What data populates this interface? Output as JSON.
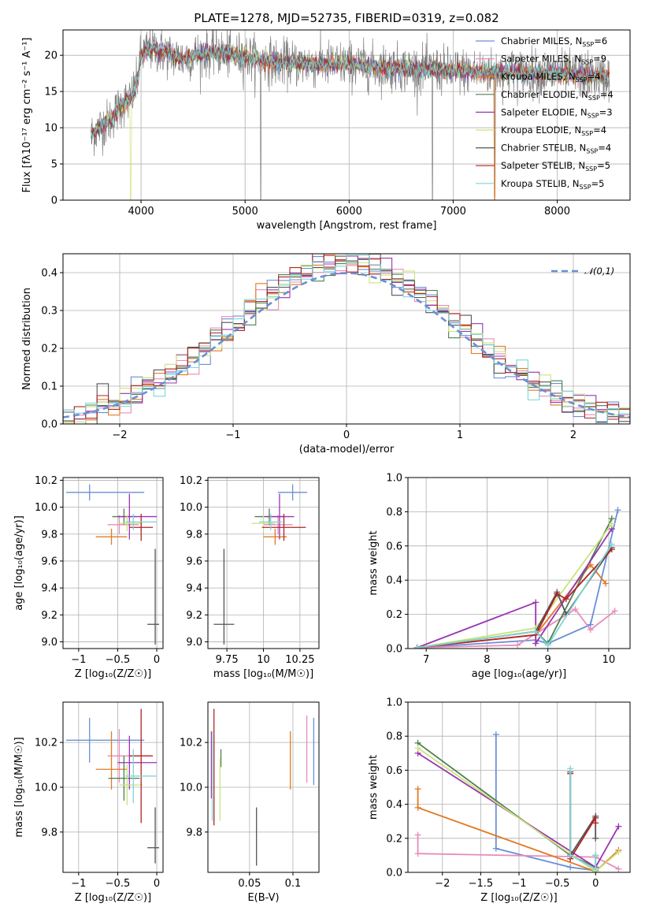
{
  "figure": {
    "title": "PLATE=1278, MJD=52735, FIBERID=0319, z=0.082"
  },
  "models": [
    {
      "label": "Chabrier MILES, N_SSP=6",
      "color": "#6a8fd6"
    },
    {
      "label": "Salpeter MILES, N_SSP=9",
      "color": "#e88cb9"
    },
    {
      "label": "Kroupa MILES, N_SSP=4",
      "color": "#e07b24"
    },
    {
      "label": "Chabrier ELODIE, N_SSP=4",
      "color": "#4f7f4f"
    },
    {
      "label": "Salpeter ELODIE, N_SSP=3",
      "color": "#9a35b1"
    },
    {
      "label": "Kroupa ELODIE, N_SSP=4",
      "color": "#c9e37c"
    },
    {
      "label": "Chabrier STELIB, N_SSP=4",
      "color": "#555555"
    },
    {
      "label": "Salpeter STELIB, N_SSP=5",
      "color": "#b22424"
    },
    {
      "label": "Kroupa STELIB, N_SSP=5",
      "color": "#7fd6d6"
    }
  ],
  "chart_data": [
    {
      "id": "spectrum",
      "type": "line",
      "xlabel": "wavelength [Angstrom, rest frame]",
      "ylabel": "Flux [fλ10⁻¹⁷ erg cm⁻² s⁻¹ A⁻¹]",
      "xlim": [
        3250,
        8700
      ],
      "ylim": [
        0,
        23.5
      ],
      "xticks": [
        4000,
        5000,
        6000,
        7000,
        8000
      ],
      "yticks": [
        0,
        5,
        10,
        15,
        20
      ],
      "grid": true,
      "legend_position": "right",
      "continuum": {
        "x": [
          3520,
          3600,
          3700,
          3800,
          3900,
          3960,
          4000,
          4100,
          4200,
          4300,
          4400,
          4500,
          4700,
          4900,
          5100,
          5300,
          5600,
          5900,
          6200,
          6500,
          6800,
          7100,
          7400,
          7700,
          8000,
          8300,
          8500
        ],
        "y": [
          9,
          10,
          11,
          13,
          14,
          16,
          20,
          21,
          20.5,
          20,
          19.5,
          20,
          20.5,
          20,
          19.5,
          19,
          18.8,
          18.8,
          18.5,
          18.2,
          18,
          17.8,
          17.7,
          17.6,
          17.4,
          17.2,
          17
        ]
      }
    },
    {
      "id": "residuals",
      "type": "histogram",
      "xlabel": "(data-model)/error",
      "ylabel": "Normed distribution",
      "xlim": [
        -2.5,
        2.5
      ],
      "ylim": [
        0,
        0.45
      ],
      "xticks": [
        -2,
        -1,
        0,
        1,
        2
      ],
      "yticks": [
        0.0,
        0.1,
        0.2,
        0.3,
        0.4
      ],
      "grid": true,
      "legend": "𝒩(0,1)",
      "legend_position": "top-right",
      "normal_color": "#6a8fd6",
      "bin_width": 0.1
    },
    {
      "id": "age_vs_Z",
      "type": "scatter",
      "xlabel": "Z [log₁₀(Z/Z☉)]",
      "ylabel": "age  [log₁₀(age/yr)]",
      "xlim": [
        -1.2,
        0.08
      ],
      "ylim": [
        8.95,
        10.22
      ],
      "xticks": [
        -1.0,
        -0.5,
        0.0
      ],
      "yticks": [
        9.0,
        9.2,
        9.4,
        9.6,
        9.8,
        10.0,
        10.2
      ],
      "grid": true,
      "points": [
        {
          "m": 0,
          "x": -0.86,
          "xerr": [
            0.3,
            0.7
          ],
          "y": 10.11,
          "yerr": [
            0.06,
            0.06
          ]
        },
        {
          "m": 1,
          "x": -0.48,
          "xerr": [
            0.15,
            0.25
          ],
          "y": 9.87,
          "yerr": [
            0.07,
            0.07
          ]
        },
        {
          "m": 2,
          "x": -0.58,
          "xerr": [
            0.2,
            0.2
          ],
          "y": 9.78,
          "yerr": [
            0.06,
            0.06
          ]
        },
        {
          "m": 3,
          "x": -0.42,
          "xerr": [
            0.15,
            0.15
          ],
          "y": 9.93,
          "yerr": [
            0.06,
            0.06
          ]
        },
        {
          "m": 4,
          "x": -0.35,
          "xerr": [
            0.15,
            0.35
          ],
          "y": 9.93,
          "yerr": [
            0.17,
            0.17
          ]
        },
        {
          "m": 5,
          "x": -0.38,
          "xerr": [
            0.1,
            0.2
          ],
          "y": 9.88,
          "yerr": [
            0.06,
            0.06
          ]
        },
        {
          "m": 6,
          "x": -0.02,
          "xerr": [
            0.1,
            0.05
          ],
          "y": 9.13,
          "yerr": [
            0.15,
            0.56
          ]
        },
        {
          "m": 7,
          "x": -0.2,
          "xerr": [
            0.15,
            0.15
          ],
          "y": 9.85,
          "yerr": [
            0.1,
            0.1
          ]
        },
        {
          "m": 8,
          "x": -0.3,
          "xerr": [
            0.1,
            0.3
          ],
          "y": 9.89,
          "yerr": [
            0.06,
            0.06
          ]
        }
      ]
    },
    {
      "id": "age_vs_mass",
      "type": "scatter",
      "xlabel": "mass [log₁₀(M/M☉)]",
      "ylabel": "",
      "xlim": [
        9.62,
        10.38
      ],
      "ylim": [
        8.95,
        10.22
      ],
      "xticks": [
        9.75,
        10.0,
        10.25
      ],
      "yticks": [
        9.0,
        9.2,
        9.4,
        9.6,
        9.8,
        10.0,
        10.2
      ],
      "grid": true,
      "points": [
        {
          "m": 0,
          "x": 10.2,
          "xerr": [
            0.1,
            0.1
          ],
          "y": 10.11,
          "yerr": [
            0.06,
            0.06
          ]
        },
        {
          "m": 1,
          "x": 10.1,
          "xerr": [
            0.1,
            0.1
          ],
          "y": 9.87,
          "yerr": [
            0.07,
            0.07
          ]
        },
        {
          "m": 2,
          "x": 10.08,
          "xerr": [
            0.08,
            0.08
          ],
          "y": 9.78,
          "yerr": [
            0.06,
            0.06
          ]
        },
        {
          "m": 3,
          "x": 10.04,
          "xerr": [
            0.1,
            0.1
          ],
          "y": 9.93,
          "yerr": [
            0.06,
            0.06
          ]
        },
        {
          "m": 4,
          "x": 10.11,
          "xerr": [
            0.1,
            0.1
          ],
          "y": 9.93,
          "yerr": [
            0.17,
            0.17
          ]
        },
        {
          "m": 5,
          "x": 10.0,
          "xerr": [
            0.08,
            0.08
          ],
          "y": 9.88,
          "yerr": [
            0.06,
            0.06
          ]
        },
        {
          "m": 6,
          "x": 9.73,
          "xerr": [
            0.07,
            0.07
          ],
          "y": 9.13,
          "yerr": [
            0.15,
            0.56
          ]
        },
        {
          "m": 7,
          "x": 10.14,
          "xerr": [
            0.15,
            0.15
          ],
          "y": 9.85,
          "yerr": [
            0.1,
            0.1
          ]
        },
        {
          "m": 8,
          "x": 10.05,
          "xerr": [
            0.08,
            0.08
          ],
          "y": 9.89,
          "yerr": [
            0.06,
            0.06
          ]
        }
      ]
    },
    {
      "id": "mass_weight_vs_age",
      "type": "line",
      "xlabel": "age  [log₁₀(age/yr)]",
      "ylabel": "mass weight",
      "xlim": [
        6.7,
        10.35
      ],
      "ylim": [
        0,
        1.0
      ],
      "xticks": [
        7,
        8,
        9,
        10
      ],
      "yticks": [
        0.0,
        0.2,
        0.4,
        0.6,
        0.8,
        1.0
      ],
      "grid": true,
      "series": [
        {
          "m": 0,
          "x": [
            6.85,
            8.8,
            9.0,
            9.7,
            10.15
          ],
          "y": [
            0.005,
            0.05,
            0.03,
            0.14,
            0.81
          ]
        },
        {
          "m": 1,
          "x": [
            6.85,
            8.5,
            9.45,
            9.7,
            10.1
          ],
          "y": [
            0.005,
            0.02,
            0.23,
            0.11,
            0.22
          ]
        },
        {
          "m": 2,
          "x": [
            6.85,
            8.8,
            9.7,
            9.95
          ],
          "y": [
            0.005,
            0.08,
            0.49,
            0.38
          ]
        },
        {
          "m": 3,
          "x": [
            6.85,
            8.8,
            9.0,
            10.05
          ],
          "y": [
            0.005,
            0.1,
            0.03,
            0.76
          ]
        },
        {
          "m": 4,
          "x": [
            6.85,
            8.8,
            8.8,
            10.05
          ],
          "y": [
            0.005,
            0.27,
            0.03,
            0.7
          ]
        },
        {
          "m": 5,
          "x": [
            6.85,
            8.8,
            10.05
          ],
          "y": [
            0.005,
            0.12,
            0.73
          ]
        },
        {
          "m": 6,
          "x": [
            6.85,
            8.8,
            9.15,
            9.3,
            10.05
          ],
          "y": [
            0.005,
            0.1,
            0.33,
            0.2,
            0.59
          ]
        },
        {
          "m": 7,
          "x": [
            6.85,
            8.8,
            9.15,
            9.3,
            10.05
          ],
          "y": [
            0.005,
            0.08,
            0.32,
            0.29,
            0.58
          ]
        },
        {
          "m": 8,
          "x": [
            6.85,
            8.8,
            9.0,
            10.05
          ],
          "y": [
            0.005,
            0.1,
            0.02,
            0.61
          ]
        }
      ]
    },
    {
      "id": "mass_vs_Z",
      "type": "scatter",
      "xlabel": "Z [log₁₀(Z/Z☉)]",
      "ylabel": "mass [log₁₀(M/M☉)]",
      "xlim": [
        -1.2,
        0.08
      ],
      "ylim": [
        9.62,
        10.38
      ],
      "xticks": [
        -1.0,
        -0.5,
        0.0
      ],
      "yticks": [
        9.8,
        10.0,
        10.2
      ],
      "grid": true,
      "points": [
        {
          "m": 0,
          "x": -0.86,
          "xerr": [
            0.3,
            0.7
          ],
          "y": 10.21,
          "yerr": [
            0.1,
            0.1
          ]
        },
        {
          "m": 1,
          "x": -0.48,
          "xerr": [
            0.15,
            0.25
          ],
          "y": 10.14,
          "yerr": [
            0.12,
            0.12
          ]
        },
        {
          "m": 2,
          "x": -0.58,
          "xerr": [
            0.2,
            0.2
          ],
          "y": 10.08,
          "yerr": [
            0.09,
            0.17
          ]
        },
        {
          "m": 3,
          "x": -0.42,
          "xerr": [
            0.2,
            0.2
          ],
          "y": 10.04,
          "yerr": [
            0.1,
            0.1
          ]
        },
        {
          "m": 4,
          "x": -0.35,
          "xerr": [
            0.15,
            0.35
          ],
          "y": 10.11,
          "yerr": [
            0.12,
            0.12
          ]
        },
        {
          "m": 5,
          "x": -0.38,
          "xerr": [
            0.1,
            0.2
          ],
          "y": 10.01,
          "yerr": [
            0.09,
            0.09
          ]
        },
        {
          "m": 6,
          "x": -0.02,
          "xerr": [
            0.1,
            0.05
          ],
          "y": 9.73,
          "yerr": [
            0.07,
            0.18
          ]
        },
        {
          "m": 7,
          "x": -0.2,
          "xerr": [
            0.15,
            0.15
          ],
          "y": 10.14,
          "yerr": [
            0.3,
            0.21
          ]
        },
        {
          "m": 8,
          "x": -0.3,
          "xerr": [
            0.1,
            0.3
          ],
          "y": 10.05,
          "yerr": [
            0.12,
            0.12
          ]
        }
      ]
    },
    {
      "id": "mass_vs_ebv",
      "type": "scatter",
      "xlabel": "E(B-V)",
      "ylabel": "",
      "xlim": [
        0.002,
        0.13
      ],
      "ylim": [
        9.62,
        10.38
      ],
      "xticks": [
        0.05,
        0.1
      ],
      "yticks": [
        9.8,
        10.0,
        10.2
      ],
      "grid": true,
      "points": [
        {
          "m": 0,
          "x": 0.124,
          "y": 10.16,
          "yerr": [
            0.15,
            0.15
          ]
        },
        {
          "m": 1,
          "x": 0.116,
          "y": 10.17,
          "yerr": [
            0.15,
            0.15
          ]
        },
        {
          "m": 2,
          "x": 0.097,
          "y": 10.12,
          "yerr": [
            0.13,
            0.13
          ]
        },
        {
          "m": 3,
          "x": 0.017,
          "y": 10.13,
          "yerr": [
            0.04,
            0.04
          ]
        },
        {
          "m": 4,
          "x": 0.006,
          "y": 10.1,
          "yerr": [
            0.15,
            0.15
          ]
        },
        {
          "m": 5,
          "x": 0.016,
          "y": 9.99,
          "yerr": [
            0.14,
            0.14
          ]
        },
        {
          "m": 6,
          "x": 0.058,
          "y": 9.78,
          "yerr": [
            0.13,
            0.13
          ]
        },
        {
          "m": 7,
          "x": 0.009,
          "y": 10.09,
          "yerr": [
            0.26,
            0.26
          ]
        },
        {
          "m": 8,
          "x": 0.007,
          "y": 10.05,
          "yerr": [
            0.2,
            0.2
          ]
        }
      ]
    },
    {
      "id": "mass_weight_vs_Z",
      "type": "line",
      "xlabel": "Z [log₁₀(Z/Z☉)]",
      "ylabel": "mass weight",
      "xlim": [
        -2.45,
        0.45
      ],
      "ylim": [
        0,
        1.0
      ],
      "xticks": [
        -2.0,
        -1.5,
        -1.0,
        -0.5,
        0.0
      ],
      "yticks": [
        0.0,
        0.2,
        0.4,
        0.6,
        0.8,
        1.0
      ],
      "grid": true,
      "series": [
        {
          "m": 0,
          "x": [
            -1.3,
            -1.3,
            -0.33,
            0.0
          ],
          "y": [
            0.81,
            0.14,
            0.03,
            0.01
          ]
        },
        {
          "m": 1,
          "x": [
            -2.32,
            -2.32,
            0.0,
            0.3
          ],
          "y": [
            0.22,
            0.11,
            0.09,
            0.02
          ]
        },
        {
          "m": 2,
          "x": [
            -2.32,
            -2.32,
            0.0,
            0.3
          ],
          "y": [
            0.49,
            0.38,
            0.005,
            0.13
          ]
        },
        {
          "m": 3,
          "x": [
            -2.32,
            -0.33,
            0.0,
            0.0
          ],
          "y": [
            0.76,
            0.1,
            0.03,
            0.1
          ]
        },
        {
          "m": 4,
          "x": [
            -2.32,
            0.0,
            0.3
          ],
          "y": [
            0.7,
            0.03,
            0.27
          ]
        },
        {
          "m": 5,
          "x": [
            -2.32,
            0.0,
            0.3
          ],
          "y": [
            0.73,
            0.005,
            0.12
          ]
        },
        {
          "m": 6,
          "x": [
            -0.33,
            -0.33,
            0.0,
            0.0
          ],
          "y": [
            0.59,
            0.1,
            0.33,
            0.2
          ]
        },
        {
          "m": 7,
          "x": [
            -0.33,
            -0.33,
            0.0,
            0.0
          ],
          "y": [
            0.58,
            0.08,
            0.32,
            0.29
          ]
        },
        {
          "m": 8,
          "x": [
            -0.33,
            -0.33,
            0.0,
            0.0
          ],
          "y": [
            0.61,
            0.1,
            0.02,
            0.1
          ]
        }
      ]
    }
  ]
}
